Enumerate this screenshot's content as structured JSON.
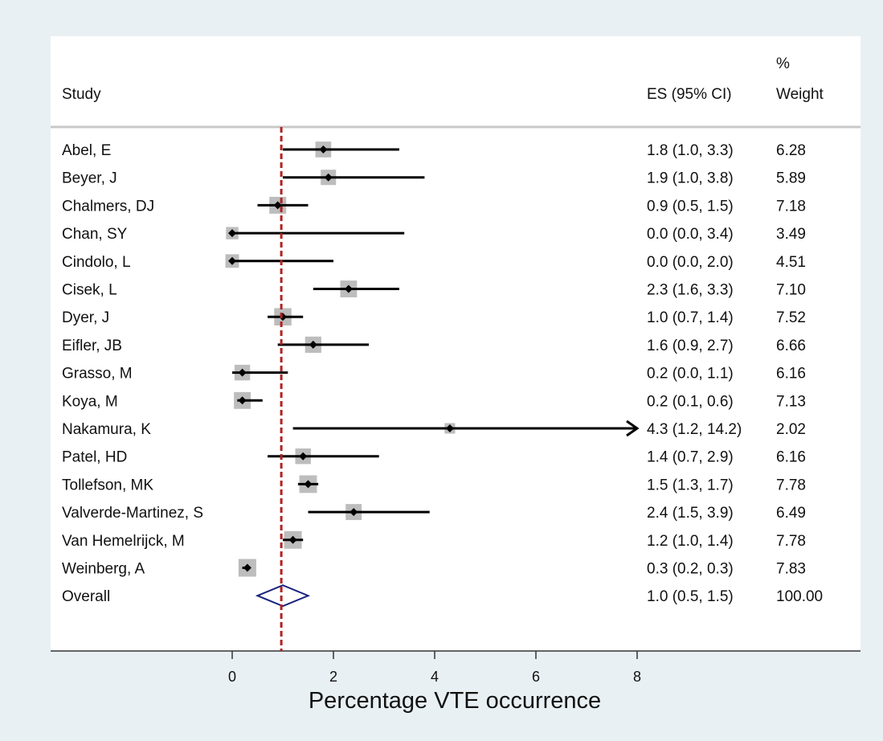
{
  "chart_data": {
    "type": "forest",
    "header": {
      "study": "Study",
      "es": "ES (95% CI)",
      "weight_line1": "%",
      "weight_line2": "Weight"
    },
    "xlabel": "Percentage VTE occurrence",
    "xticks": [
      0,
      2,
      4,
      6,
      8
    ],
    "xlim": [
      0,
      8
    ],
    "reference_line": 0.97,
    "studies": [
      {
        "name": "Abel, E",
        "es": 1.8,
        "lo": 1.0,
        "hi": 3.3,
        "es_text": "1.8 (1.0, 3.3)",
        "weight": "6.28"
      },
      {
        "name": "Beyer, J",
        "es": 1.9,
        "lo": 1.0,
        "hi": 3.8,
        "es_text": "1.9 (1.0, 3.8)",
        "weight": "5.89"
      },
      {
        "name": "Chalmers, DJ",
        "es": 0.9,
        "lo": 0.5,
        "hi": 1.5,
        "es_text": "0.9 (0.5, 1.5)",
        "weight": "7.18"
      },
      {
        "name": "Chan, SY",
        "es": 0.0,
        "lo": 0.0,
        "hi": 3.4,
        "es_text": "0.0 (0.0, 3.4)",
        "weight": "3.49"
      },
      {
        "name": "Cindolo, L",
        "es": 0.0,
        "lo": 0.0,
        "hi": 2.0,
        "es_text": "0.0 (0.0, 2.0)",
        "weight": "4.51"
      },
      {
        "name": "Cisek, L",
        "es": 2.3,
        "lo": 1.6,
        "hi": 3.3,
        "es_text": "2.3 (1.6, 3.3)",
        "weight": "7.10"
      },
      {
        "name": "Dyer, J",
        "es": 1.0,
        "lo": 0.7,
        "hi": 1.4,
        "es_text": "1.0 (0.7, 1.4)",
        "weight": "7.52"
      },
      {
        "name": "Eifler, JB",
        "es": 1.6,
        "lo": 0.9,
        "hi": 2.7,
        "es_text": "1.6 (0.9, 2.7)",
        "weight": "6.66"
      },
      {
        "name": "Grasso, M",
        "es": 0.2,
        "lo": 0.0,
        "hi": 1.1,
        "es_text": "0.2 (0.0, 1.1)",
        "weight": "6.16"
      },
      {
        "name": "Koya, M",
        "es": 0.2,
        "lo": 0.1,
        "hi": 0.6,
        "es_text": "0.2 (0.1, 0.6)",
        "weight": "7.13"
      },
      {
        "name": "Nakamura, K",
        "es": 4.3,
        "lo": 1.2,
        "hi": 14.2,
        "es_text": "4.3 (1.2, 14.2)",
        "weight": "2.02"
      },
      {
        "name": "Patel, HD",
        "es": 1.4,
        "lo": 0.7,
        "hi": 2.9,
        "es_text": "1.4 (0.7, 2.9)",
        "weight": "6.16"
      },
      {
        "name": "Tollefson, MK",
        "es": 1.5,
        "lo": 1.3,
        "hi": 1.7,
        "es_text": "1.5 (1.3, 1.7)",
        "weight": "7.78"
      },
      {
        "name": "Valverde-Martinez, S",
        "es": 2.4,
        "lo": 1.5,
        "hi": 3.9,
        "es_text": "2.4 (1.5, 3.9)",
        "weight": "6.49"
      },
      {
        "name": "Van Hemelrijck, M",
        "es": 1.2,
        "lo": 1.0,
        "hi": 1.4,
        "es_text": "1.2 (1.0, 1.4)",
        "weight": "7.78"
      },
      {
        "name": "Weinberg, A",
        "es": 0.3,
        "lo": 0.2,
        "hi": 0.3,
        "es_text": "0.3 (0.2, 0.3)",
        "weight": "7.83"
      }
    ],
    "overall": {
      "name": "Overall",
      "es": 1.0,
      "lo": 0.5,
      "hi": 1.5,
      "es_text": "1.0 (0.5, 1.5)",
      "weight": "100.00"
    },
    "colors": {
      "background": "#e8f0f4",
      "panel": "#ffffff",
      "box": "#bdbdbd",
      "point": "#000000",
      "reference_line": "#b22222",
      "diamond": "#1a237e",
      "separator": "#c8c8c8"
    }
  }
}
